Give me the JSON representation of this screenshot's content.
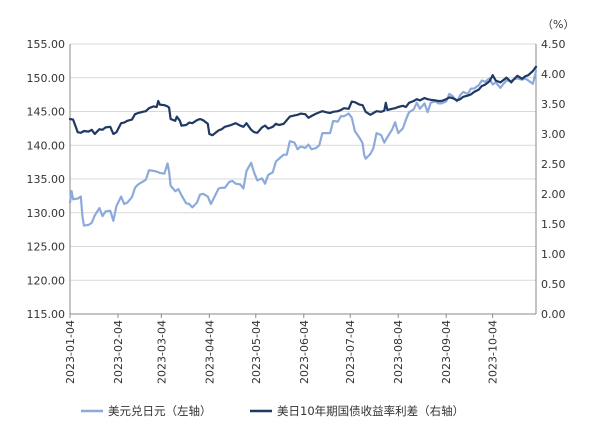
{
  "chart_data": {
    "type": "line",
    "title": "",
    "unit_right": "（%）",
    "x_ticks": [
      "2023-01-04",
      "2023-02-04",
      "2023-03-04",
      "2023-04-04",
      "2023-05-04",
      "2023-06-04",
      "2023-07-04",
      "2023-08-04",
      "2023-09-04",
      "2023-10-04"
    ],
    "x_range": [
      "2023-01-04",
      "2023-11-01"
    ],
    "y_left": {
      "ticks": [
        "115.00",
        "120.00",
        "125.00",
        "130.00",
        "135.00",
        "140.00",
        "145.00",
        "150.00",
        "155.00"
      ],
      "ylim": [
        115,
        155
      ]
    },
    "y_right": {
      "ticks": [
        "0.00",
        "0.50",
        "1.00",
        "1.50",
        "2.00",
        "2.50",
        "3.00",
        "3.50",
        "4.00",
        "4.50"
      ],
      "ylim": [
        0,
        4.5
      ]
    },
    "grid": true,
    "legend_position": "bottom",
    "series": [
      {
        "name": "美元兑日元（左轴）",
        "axis": "left",
        "color": "#8eaadb",
        "points": [
          [
            "2023-01-04",
            131.5
          ],
          [
            "2023-01-05",
            133.2
          ],
          [
            "2023-01-06",
            132.0
          ],
          [
            "2023-01-09",
            132.1
          ],
          [
            "2023-01-11",
            132.4
          ],
          [
            "2023-01-12",
            129.5
          ],
          [
            "2023-01-13",
            128.1
          ],
          [
            "2023-01-16",
            128.2
          ],
          [
            "2023-01-18",
            128.5
          ],
          [
            "2023-01-20",
            129.6
          ],
          [
            "2023-01-23",
            130.7
          ],
          [
            "2023-01-25",
            129.5
          ],
          [
            "2023-01-27",
            130.2
          ],
          [
            "2023-01-30",
            130.3
          ],
          [
            "2023-02-01",
            128.8
          ],
          [
            "2023-02-03",
            131.0
          ],
          [
            "2023-02-06",
            132.4
          ],
          [
            "2023-02-08",
            131.3
          ],
          [
            "2023-02-10",
            131.5
          ],
          [
            "2023-02-13",
            132.3
          ],
          [
            "2023-02-15",
            133.7
          ],
          [
            "2023-02-17",
            134.2
          ],
          [
            "2023-02-20",
            134.6
          ],
          [
            "2023-02-22",
            134.9
          ],
          [
            "2023-02-24",
            136.3
          ],
          [
            "2023-02-27",
            136.2
          ],
          [
            "2023-03-01",
            136.1
          ],
          [
            "2023-03-03",
            135.9
          ],
          [
            "2023-03-06",
            135.8
          ],
          [
            "2023-03-08",
            137.3
          ],
          [
            "2023-03-09",
            136.1
          ],
          [
            "2023-03-10",
            134.0
          ],
          [
            "2023-03-13",
            133.2
          ],
          [
            "2023-03-15",
            133.5
          ],
          [
            "2023-03-17",
            132.6
          ],
          [
            "2023-03-20",
            131.4
          ],
          [
            "2023-03-22",
            131.3
          ],
          [
            "2023-03-24",
            130.8
          ],
          [
            "2023-03-27",
            131.5
          ],
          [
            "2023-03-29",
            132.7
          ],
          [
            "2023-03-31",
            132.8
          ],
          [
            "2023-04-03",
            132.4
          ],
          [
            "2023-04-05",
            131.3
          ],
          [
            "2023-04-07",
            132.2
          ],
          [
            "2023-04-10",
            133.6
          ],
          [
            "2023-04-12",
            133.7
          ],
          [
            "2023-04-14",
            133.7
          ],
          [
            "2023-04-17",
            134.6
          ],
          [
            "2023-04-19",
            134.7
          ],
          [
            "2023-04-21",
            134.3
          ],
          [
            "2023-04-24",
            134.2
          ],
          [
            "2023-04-26",
            133.6
          ],
          [
            "2023-04-28",
            136.2
          ],
          [
            "2023-05-01",
            137.4
          ],
          [
            "2023-05-03",
            135.9
          ],
          [
            "2023-05-05",
            134.8
          ],
          [
            "2023-05-08",
            135.1
          ],
          [
            "2023-05-10",
            134.3
          ],
          [
            "2023-05-12",
            135.6
          ],
          [
            "2023-05-15",
            136.0
          ],
          [
            "2023-05-17",
            137.6
          ],
          [
            "2023-05-19",
            138.0
          ],
          [
            "2023-05-22",
            138.6
          ],
          [
            "2023-05-24",
            138.6
          ],
          [
            "2023-05-26",
            140.6
          ],
          [
            "2023-05-29",
            140.4
          ],
          [
            "2023-05-31",
            139.4
          ],
          [
            "2023-06-02",
            139.8
          ],
          [
            "2023-06-05",
            139.6
          ],
          [
            "2023-06-07",
            140.1
          ],
          [
            "2023-06-09",
            139.4
          ],
          [
            "2023-06-12",
            139.6
          ],
          [
            "2023-06-14",
            140.0
          ],
          [
            "2023-06-16",
            141.8
          ],
          [
            "2023-06-19",
            141.8
          ],
          [
            "2023-06-21",
            141.8
          ],
          [
            "2023-06-23",
            143.6
          ],
          [
            "2023-06-26",
            143.5
          ],
          [
            "2023-06-28",
            144.3
          ],
          [
            "2023-06-30",
            144.3
          ],
          [
            "2023-07-03",
            144.7
          ],
          [
            "2023-07-05",
            144.1
          ],
          [
            "2023-07-07",
            142.1
          ],
          [
            "2023-07-10",
            141.1
          ],
          [
            "2023-07-12",
            140.3
          ],
          [
            "2023-07-13",
            138.6
          ],
          [
            "2023-07-14",
            138.0
          ],
          [
            "2023-07-17",
            138.7
          ],
          [
            "2023-07-19",
            139.6
          ],
          [
            "2023-07-21",
            141.8
          ],
          [
            "2023-07-24",
            141.5
          ],
          [
            "2023-07-26",
            140.4
          ],
          [
            "2023-07-28",
            141.2
          ],
          [
            "2023-07-31",
            142.3
          ],
          [
            "2023-08-02",
            143.4
          ],
          [
            "2023-08-04",
            141.8
          ],
          [
            "2023-08-07",
            142.5
          ],
          [
            "2023-08-09",
            143.8
          ],
          [
            "2023-08-11",
            144.9
          ],
          [
            "2023-08-14",
            145.3
          ],
          [
            "2023-08-16",
            146.3
          ],
          [
            "2023-08-18",
            145.4
          ],
          [
            "2023-08-21",
            146.2
          ],
          [
            "2023-08-23",
            144.9
          ],
          [
            "2023-08-25",
            146.3
          ],
          [
            "2023-08-28",
            146.5
          ],
          [
            "2023-08-30",
            146.2
          ],
          [
            "2023-09-01",
            146.2
          ],
          [
            "2023-09-04",
            146.5
          ],
          [
            "2023-09-06",
            147.6
          ],
          [
            "2023-09-08",
            147.3
          ],
          [
            "2023-09-11",
            146.5
          ],
          [
            "2023-09-13",
            147.4
          ],
          [
            "2023-09-15",
            147.9
          ],
          [
            "2023-09-18",
            147.6
          ],
          [
            "2023-09-20",
            148.4
          ],
          [
            "2023-09-22",
            148.4
          ],
          [
            "2023-09-25",
            148.9
          ],
          [
            "2023-09-27",
            149.6
          ],
          [
            "2023-09-29",
            149.4
          ],
          [
            "2023-10-02",
            149.9
          ],
          [
            "2023-10-04",
            149.0
          ],
          [
            "2023-10-06",
            149.3
          ],
          [
            "2023-10-09",
            148.5
          ],
          [
            "2023-10-11",
            149.1
          ],
          [
            "2023-10-13",
            149.6
          ],
          [
            "2023-10-16",
            149.5
          ],
          [
            "2023-10-18",
            149.8
          ],
          [
            "2023-10-20",
            149.9
          ],
          [
            "2023-10-23",
            149.7
          ],
          [
            "2023-10-25",
            149.9
          ],
          [
            "2023-10-27",
            149.6
          ],
          [
            "2023-10-30",
            149.1
          ],
          [
            "2023-11-01",
            151.0
          ]
        ]
      },
      {
        "name": "美日10年期国债收益率利差（右轴）",
        "axis": "right",
        "color": "#203864",
        "points": [
          [
            "2023-01-04",
            3.25
          ],
          [
            "2023-01-06",
            3.24
          ],
          [
            "2023-01-09",
            3.03
          ],
          [
            "2023-01-11",
            3.02
          ],
          [
            "2023-01-13",
            3.05
          ],
          [
            "2023-01-16",
            3.04
          ],
          [
            "2023-01-18",
            3.07
          ],
          [
            "2023-01-20",
            3.0
          ],
          [
            "2023-01-23",
            3.08
          ],
          [
            "2023-01-25",
            3.07
          ],
          [
            "2023-01-27",
            3.11
          ],
          [
            "2023-01-30",
            3.12
          ],
          [
            "2023-02-01",
            3.0
          ],
          [
            "2023-02-03",
            3.03
          ],
          [
            "2023-02-06",
            3.18
          ],
          [
            "2023-02-08",
            3.19
          ],
          [
            "2023-02-10",
            3.22
          ],
          [
            "2023-02-13",
            3.24
          ],
          [
            "2023-02-15",
            3.33
          ],
          [
            "2023-02-17",
            3.35
          ],
          [
            "2023-02-20",
            3.37
          ],
          [
            "2023-02-22",
            3.38
          ],
          [
            "2023-02-24",
            3.43
          ],
          [
            "2023-02-27",
            3.46
          ],
          [
            "2023-03-01",
            3.45
          ],
          [
            "2023-03-02",
            3.55
          ],
          [
            "2023-03-03",
            3.49
          ],
          [
            "2023-03-06",
            3.48
          ],
          [
            "2023-03-08",
            3.46
          ],
          [
            "2023-03-09",
            3.44
          ],
          [
            "2023-03-10",
            3.25
          ],
          [
            "2023-03-13",
            3.22
          ],
          [
            "2023-03-14",
            3.29
          ],
          [
            "2023-03-16",
            3.22
          ],
          [
            "2023-03-17",
            3.14
          ],
          [
            "2023-03-20",
            3.15
          ],
          [
            "2023-03-22",
            3.19
          ],
          [
            "2023-03-24",
            3.18
          ],
          [
            "2023-03-27",
            3.23
          ],
          [
            "2023-03-29",
            3.25
          ],
          [
            "2023-03-31",
            3.23
          ],
          [
            "2023-04-03",
            3.17
          ],
          [
            "2023-04-04",
            3.0
          ],
          [
            "2023-04-06",
            2.98
          ],
          [
            "2023-04-10",
            3.06
          ],
          [
            "2023-04-12",
            3.08
          ],
          [
            "2023-04-14",
            3.12
          ],
          [
            "2023-04-17",
            3.14
          ],
          [
            "2023-04-19",
            3.16
          ],
          [
            "2023-04-21",
            3.18
          ],
          [
            "2023-04-24",
            3.14
          ],
          [
            "2023-04-26",
            3.12
          ],
          [
            "2023-04-28",
            3.18
          ],
          [
            "2023-05-01",
            3.07
          ],
          [
            "2023-05-03",
            3.03
          ],
          [
            "2023-05-05",
            3.02
          ],
          [
            "2023-05-08",
            3.11
          ],
          [
            "2023-05-10",
            3.14
          ],
          [
            "2023-05-12",
            3.09
          ],
          [
            "2023-05-15",
            3.12
          ],
          [
            "2023-05-17",
            3.17
          ],
          [
            "2023-05-19",
            3.15
          ],
          [
            "2023-05-22",
            3.17
          ],
          [
            "2023-05-24",
            3.23
          ],
          [
            "2023-05-26",
            3.29
          ],
          [
            "2023-05-29",
            3.31
          ],
          [
            "2023-05-31",
            3.32
          ],
          [
            "2023-06-02",
            3.34
          ],
          [
            "2023-06-05",
            3.33
          ],
          [
            "2023-06-07",
            3.27
          ],
          [
            "2023-06-09",
            3.3
          ],
          [
            "2023-06-12",
            3.34
          ],
          [
            "2023-06-14",
            3.36
          ],
          [
            "2023-06-16",
            3.38
          ],
          [
            "2023-06-19",
            3.36
          ],
          [
            "2023-06-21",
            3.35
          ],
          [
            "2023-06-23",
            3.37
          ],
          [
            "2023-06-26",
            3.38
          ],
          [
            "2023-06-28",
            3.4
          ],
          [
            "2023-06-30",
            3.43
          ],
          [
            "2023-07-03",
            3.42
          ],
          [
            "2023-07-05",
            3.54
          ],
          [
            "2023-07-07",
            3.53
          ],
          [
            "2023-07-10",
            3.49
          ],
          [
            "2023-07-12",
            3.48
          ],
          [
            "2023-07-14",
            3.37
          ],
          [
            "2023-07-17",
            3.32
          ],
          [
            "2023-07-19",
            3.35
          ],
          [
            "2023-07-21",
            3.38
          ],
          [
            "2023-07-24",
            3.37
          ],
          [
            "2023-07-26",
            3.39
          ],
          [
            "2023-07-27",
            3.52
          ],
          [
            "2023-07-28",
            3.4
          ],
          [
            "2023-07-31",
            3.42
          ],
          [
            "2023-08-02",
            3.43
          ],
          [
            "2023-08-04",
            3.45
          ],
          [
            "2023-08-07",
            3.47
          ],
          [
            "2023-08-09",
            3.45
          ],
          [
            "2023-08-11",
            3.52
          ],
          [
            "2023-08-14",
            3.55
          ],
          [
            "2023-08-16",
            3.58
          ],
          [
            "2023-08-18",
            3.56
          ],
          [
            "2023-08-21",
            3.6
          ],
          [
            "2023-08-23",
            3.58
          ],
          [
            "2023-08-25",
            3.57
          ],
          [
            "2023-08-28",
            3.56
          ],
          [
            "2023-08-30",
            3.55
          ],
          [
            "2023-09-01",
            3.55
          ],
          [
            "2023-09-04",
            3.58
          ],
          [
            "2023-09-06",
            3.61
          ],
          [
            "2023-09-08",
            3.6
          ],
          [
            "2023-09-11",
            3.56
          ],
          [
            "2023-09-13",
            3.58
          ],
          [
            "2023-09-15",
            3.62
          ],
          [
            "2023-09-18",
            3.64
          ],
          [
            "2023-09-20",
            3.66
          ],
          [
            "2023-09-22",
            3.7
          ],
          [
            "2023-09-25",
            3.74
          ],
          [
            "2023-09-27",
            3.8
          ],
          [
            "2023-09-29",
            3.82
          ],
          [
            "2023-10-02",
            3.88
          ],
          [
            "2023-10-04",
            3.98
          ],
          [
            "2023-10-06",
            3.89
          ],
          [
            "2023-10-09",
            3.86
          ],
          [
            "2023-10-11",
            3.9
          ],
          [
            "2023-10-13",
            3.94
          ],
          [
            "2023-10-16",
            3.86
          ],
          [
            "2023-10-18",
            3.92
          ],
          [
            "2023-10-20",
            3.97
          ],
          [
            "2023-10-23",
            3.92
          ],
          [
            "2023-10-25",
            3.96
          ],
          [
            "2023-10-27",
            3.98
          ],
          [
            "2023-10-30",
            4.05
          ],
          [
            "2023-11-01",
            4.12
          ]
        ]
      }
    ]
  }
}
